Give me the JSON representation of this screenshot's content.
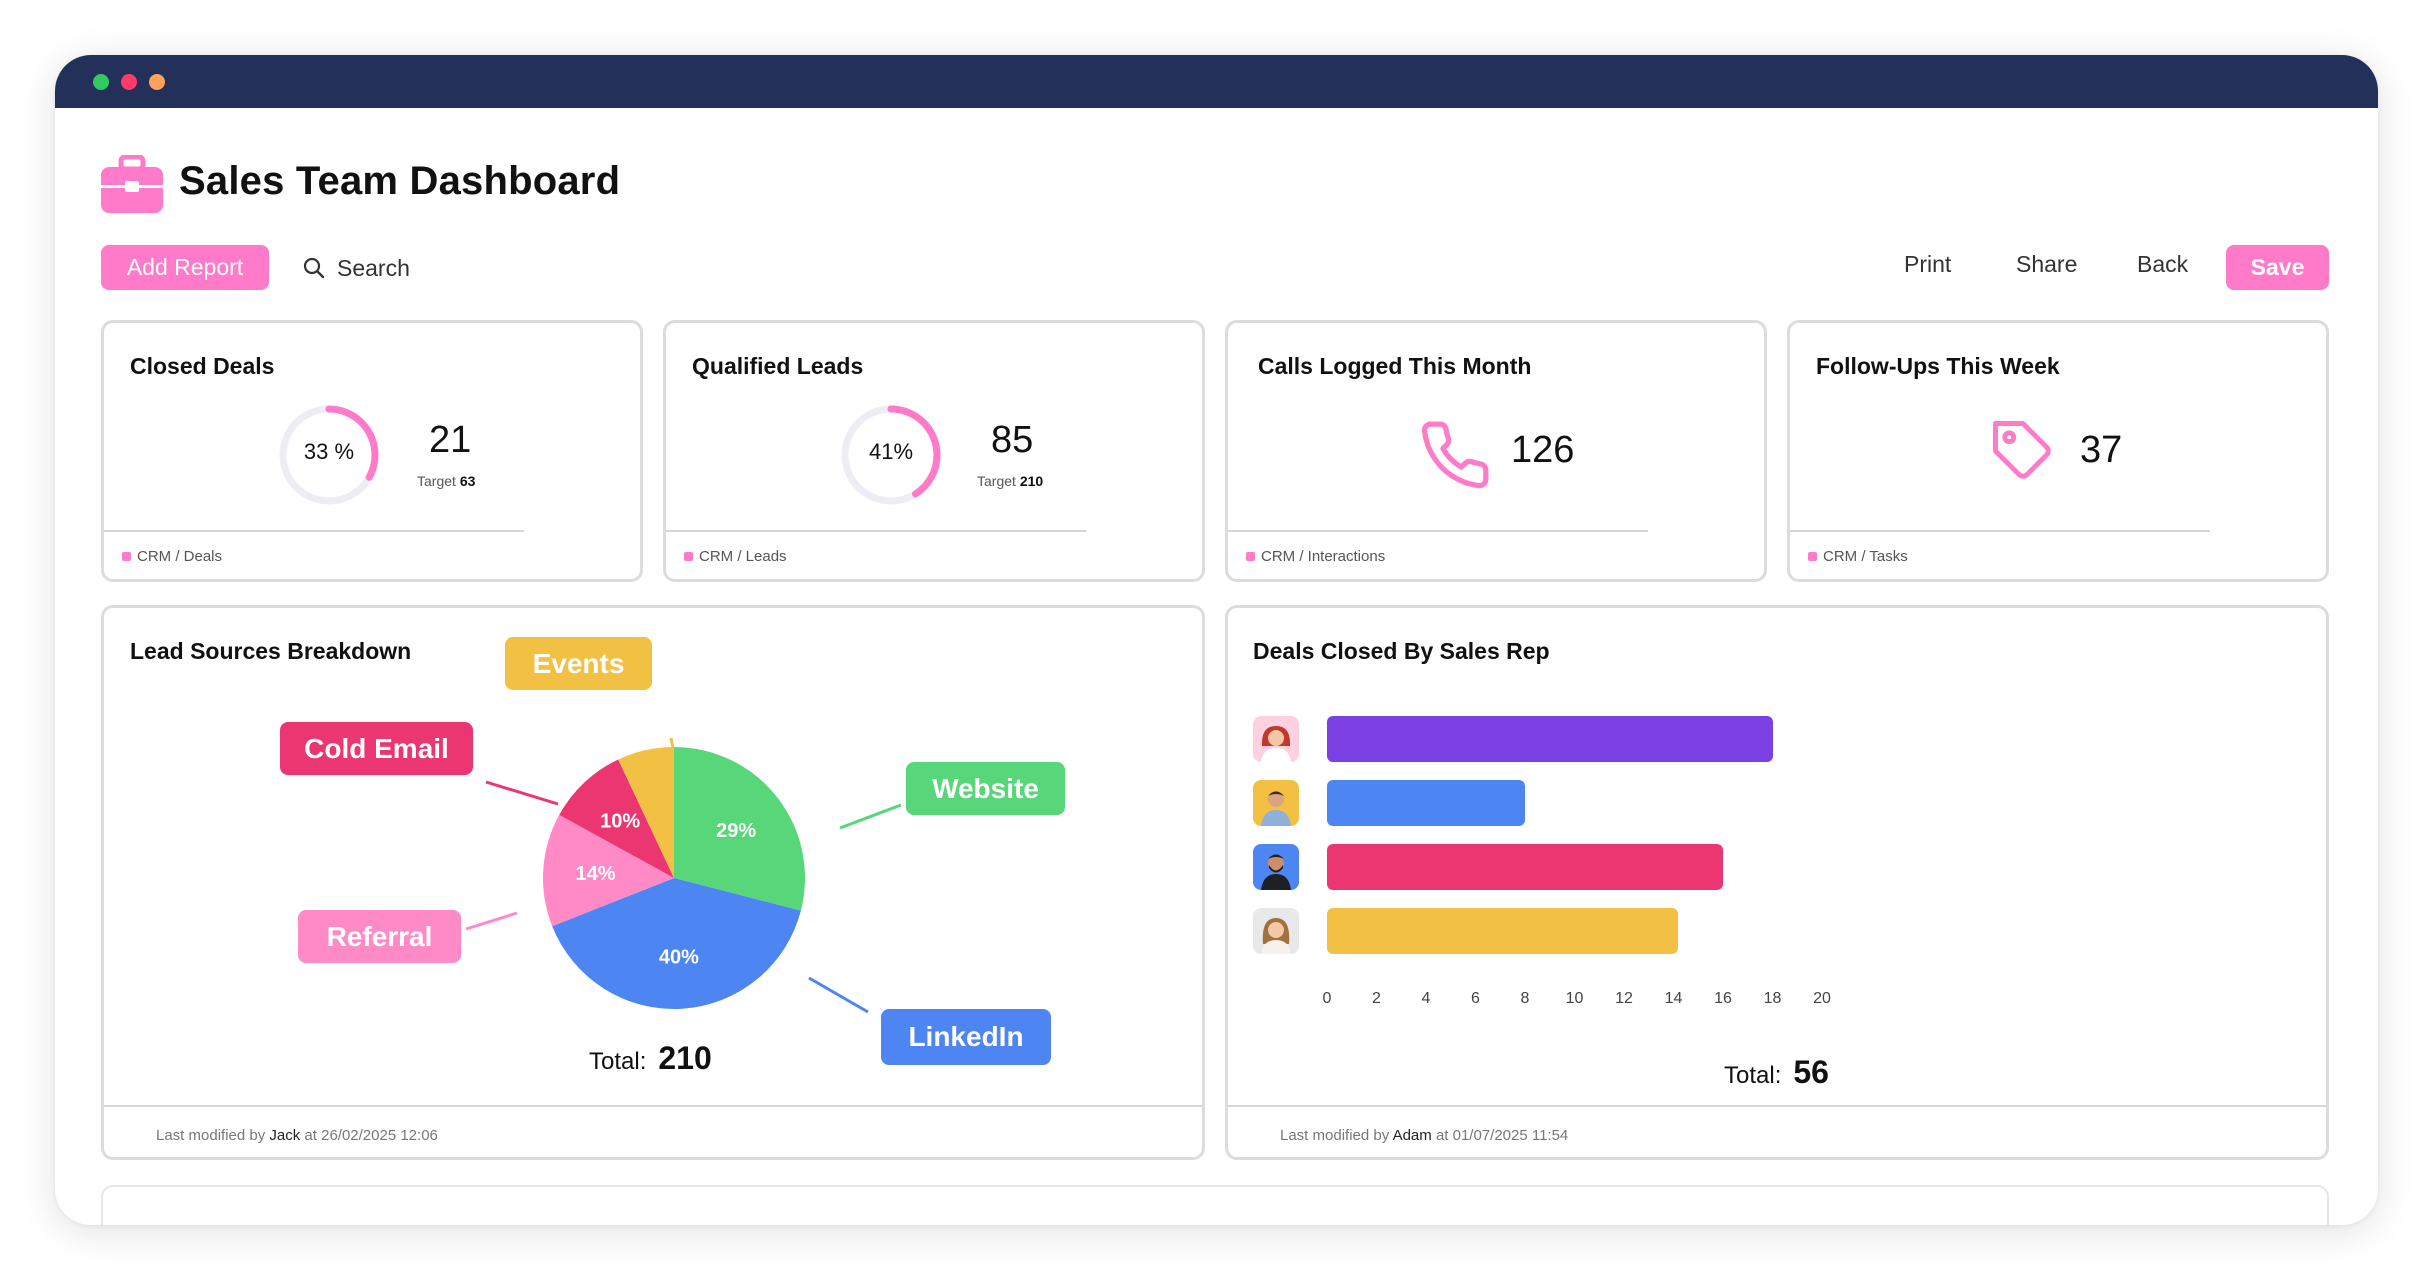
{
  "app": {
    "title": "Sales Team Dashboard",
    "icon": "briefcase-icon"
  },
  "toolbar": {
    "add_report_label": "Add Report",
    "search_label": "Search",
    "print_label": "Print",
    "share_label": "Share",
    "back_label": "Back",
    "save_label": "Save"
  },
  "colors": {
    "accent": "#ff7ac8",
    "titlebar": "#22305a",
    "purple": "#7b3fe4",
    "blue": "#4d86f2",
    "magenta": "#eb3672",
    "yellow": "#f2c144",
    "green": "#57d67a",
    "pink": "#ff8ac6"
  },
  "kpis": [
    {
      "title": "Closed Deals",
      "ring_label": "33 %",
      "percent": 33,
      "value": "21",
      "target_label": "Target",
      "target_value": "63",
      "source": "CRM / Deals"
    },
    {
      "title": "Qualified Leads",
      "ring_label": "41%",
      "percent": 41,
      "value": "85",
      "target_label": "Target",
      "target_value": "210",
      "source": "CRM / Leads"
    },
    {
      "title": "Calls Logged This Month",
      "icon": "phone-icon",
      "value": "126",
      "source": "CRM / Interactions"
    },
    {
      "title": "Follow-Ups This Week",
      "icon": "tag-icon",
      "value": "37",
      "source": "CRM / Tasks"
    }
  ],
  "lead_sources": {
    "title": "Lead Sources Breakdown",
    "total_label": "Total:",
    "total_value": "210",
    "footer_prefix": "Last modified by",
    "footer_user": "Jack",
    "footer_suffix": "at 26/02/2025 12:06",
    "callouts": [
      "Events",
      "Cold Email",
      "Website",
      "Referral",
      "LinkedIn"
    ]
  },
  "deals_by_rep": {
    "title": "Deals Closed By Sales Rep",
    "total_label": "Total:",
    "total_value": "56",
    "footer_prefix": "Last modified by",
    "footer_user": "Adam",
    "footer_suffix": "at 01/07/2025 11:54"
  },
  "chart_data": [
    {
      "type": "pie",
      "title": "Lead Sources Breakdown",
      "series": [
        {
          "name": "Website",
          "value": 29,
          "label": "29%",
          "color": "#57d67a"
        },
        {
          "name": "LinkedIn",
          "value": 40,
          "label": "40%",
          "color": "#4d86f2"
        },
        {
          "name": "Referral",
          "value": 14,
          "label": "14%",
          "color": "#ff8ac6"
        },
        {
          "name": "Cold Email",
          "value": 10,
          "label": "10%",
          "color": "#eb3672"
        },
        {
          "name": "Events",
          "value": 7,
          "label": "",
          "color": "#f2c144"
        }
      ]
    },
    {
      "type": "bar",
      "orientation": "horizontal",
      "title": "Deals Closed By Sales Rep",
      "categories": [
        "rep-1",
        "rep-2",
        "rep-3",
        "rep-4"
      ],
      "values": [
        18,
        8,
        16,
        14.2
      ],
      "colors": [
        "#7b3fe4",
        "#4d86f2",
        "#eb3672",
        "#f2c144"
      ],
      "xlim": [
        0,
        20
      ],
      "xticks": [
        "0",
        "2",
        "4",
        "6",
        "8",
        "10",
        "12",
        "14",
        "16",
        "18",
        "20"
      ],
      "grid": false
    }
  ]
}
